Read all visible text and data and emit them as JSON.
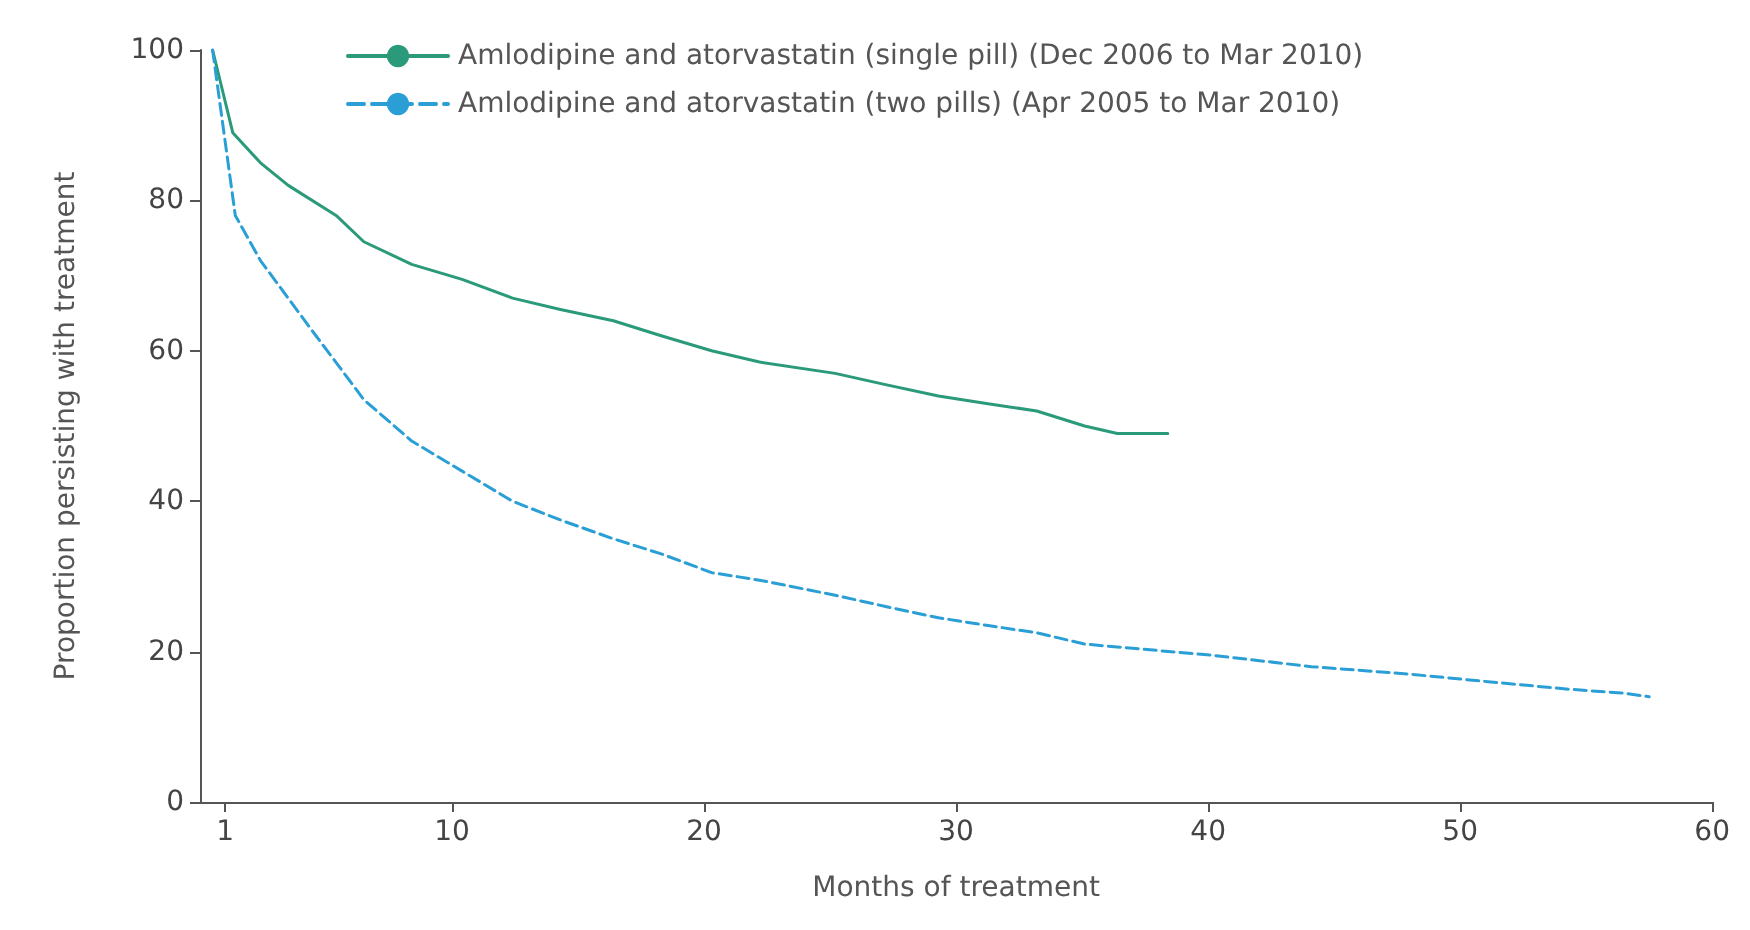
{
  "chart_data": {
    "type": "line",
    "xlabel": "Months of treatment",
    "ylabel": "Proportion persisting with treatment",
    "xlim": [
      0,
      60
    ],
    "xticks": [
      1,
      10,
      20,
      30,
      40,
      50,
      60
    ],
    "ylim": [
      0,
      100
    ],
    "yticks": [
      0,
      20,
      40,
      60,
      80,
      100
    ],
    "grid": false,
    "legend": "top",
    "marker": "none",
    "series": [
      {
        "name": "Amlodipine and atorvastatin (single pill) (Dec 2006 to Mar 2010)",
        "color": "#2a9a7a",
        "line_style": "solid",
        "x": [
          0.5,
          1.3,
          2.4,
          3.5,
          5.4,
          6.5,
          8.4,
          10.4,
          12.4,
          14.3,
          16.4,
          18.3,
          20.3,
          22.2,
          25.2,
          27.2,
          29.3,
          31.2,
          33.2,
          35.1,
          36.4,
          38.4
        ],
        "values": [
          100,
          89,
          85,
          82,
          78,
          74.5,
          71.5,
          69.5,
          67,
          65.5,
          64,
          62,
          60,
          58.5,
          57,
          55.5,
          54,
          53,
          52,
          50,
          49,
          49
        ]
      },
      {
        "name": "Amlodipine and atorvastatin (two pills) (Apr 2005 to Mar 2010)",
        "color": "#2a9fd6",
        "line_style": "dashed",
        "x": [
          0.5,
          1.4,
          2.4,
          3.5,
          4.6,
          5.5,
          6.5,
          8.4,
          10.4,
          12.4,
          14.3,
          16.4,
          18.3,
          20.3,
          22.2,
          25.2,
          27.2,
          29.3,
          31.2,
          33.2,
          35.1,
          40.2,
          44.1,
          48,
          51.1,
          54.3,
          56.4,
          57.5
        ],
        "values": [
          100,
          78,
          72,
          67,
          62,
          58,
          53.5,
          48,
          44,
          40,
          37.5,
          35,
          33,
          30.5,
          29.5,
          27.5,
          26,
          24.5,
          23.5,
          22.5,
          21,
          19.5,
          18,
          17,
          16,
          15,
          14.5,
          14
        ]
      }
    ]
  }
}
